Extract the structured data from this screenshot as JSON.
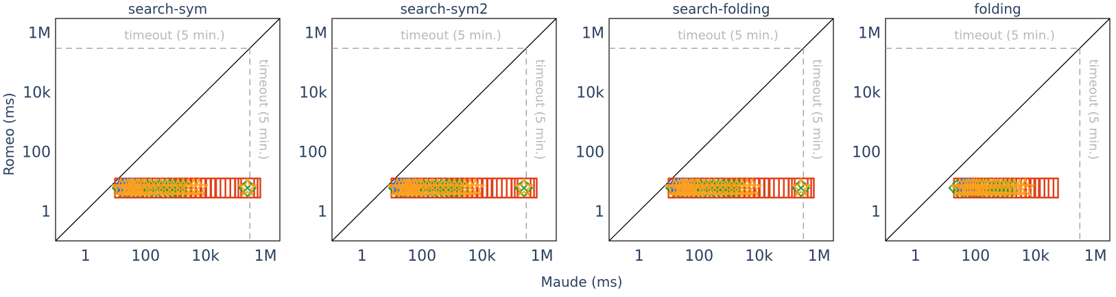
{
  "xlabel": "Maude (ms)",
  "ylabel": "Romeo (ms)",
  "timeout_label": "timeout (5 min.)",
  "timeout_value": 300000,
  "tick_values": [
    1,
    100,
    10000,
    1000000
  ],
  "tick_labels": [
    "1",
    "100",
    "10k",
    "1M"
  ],
  "colors": {
    "red": "#e0401a",
    "green": "#2ca02c",
    "orange": "#ffa01e",
    "blue": "#3a6bd0",
    "timeout_line": "#999999",
    "axis_text": "#2a3f5f",
    "diagonal": "#000000"
  },
  "chart_data": [
    {
      "type": "scatter",
      "title": "search-sym",
      "xscale": "log",
      "yscale": "log",
      "xlim": [
        0.1,
        3000000
      ],
      "ylim": [
        0.1,
        3000000
      ],
      "grid": false,
      "series": [
        {
          "color": "red",
          "marker": "square",
          "x": [
            20,
            28,
            40,
            55,
            80,
            110,
            160,
            230,
            330,
            480,
            700,
            1000,
            1500,
            2200,
            3200,
            4700,
            7000,
            10000,
            15000,
            22000,
            32000,
            47000,
            200000,
            260000,
            320000
          ],
          "y": [
            6,
            6,
            6,
            6,
            6,
            6,
            6,
            6,
            6,
            6,
            6,
            6,
            6,
            6,
            6,
            6,
            6,
            6,
            6,
            6,
            6,
            6,
            6,
            6,
            6
          ]
        },
        {
          "color": "green",
          "marker": "x-diamond",
          "x": [
            15,
            22,
            30,
            40,
            55,
            75,
            110,
            150,
            220,
            300,
            450,
            650,
            900,
            1300,
            2000,
            250000
          ],
          "y": [
            6,
            6,
            6,
            6,
            6,
            6,
            6,
            6,
            6,
            6,
            6,
            6,
            6,
            6,
            6,
            6
          ]
        },
        {
          "color": "blue",
          "marker": "circle",
          "x": [
            20,
            28,
            35
          ],
          "y": [
            7,
            7,
            7
          ]
        },
        {
          "color": "orange",
          "marker": "star",
          "x": [
            15,
            20,
            25,
            30,
            35,
            40,
            50,
            60,
            80,
            100,
            150,
            220,
            330,
            500,
            800,
            1200,
            1800,
            2700,
            4000,
            6000,
            250000
          ],
          "y": [
            6,
            6,
            6,
            6,
            6,
            6,
            6,
            6,
            6,
            6,
            6,
            6,
            6,
            6,
            6,
            6,
            6,
            6,
            6,
            6,
            6
          ]
        }
      ]
    },
    {
      "type": "scatter",
      "title": "search-sym2",
      "xscale": "log",
      "yscale": "log",
      "xlim": [
        0.1,
        3000000
      ],
      "ylim": [
        0.1,
        3000000
      ],
      "grid": false,
      "series": [
        {
          "color": "red",
          "marker": "square",
          "x": [
            20,
            28,
            40,
            55,
            80,
            110,
            160,
            230,
            330,
            480,
            700,
            1000,
            1500,
            2200,
            3200,
            4700,
            7000,
            10000,
            15000,
            22000,
            32000,
            47000,
            200000,
            260000,
            320000
          ],
          "y": [
            6,
            6,
            6,
            6,
            6,
            6,
            6,
            6,
            6,
            6,
            6,
            6,
            6,
            6,
            6,
            6,
            6,
            6,
            6,
            6,
            6,
            6,
            6,
            6,
            6
          ]
        },
        {
          "color": "green",
          "marker": "x-diamond",
          "x": [
            15,
            22,
            30,
            40,
            55,
            75,
            110,
            150,
            220,
            300,
            450,
            650,
            900,
            1300,
            2000,
            250000
          ],
          "y": [
            6,
            6,
            6,
            6,
            6,
            6,
            6,
            6,
            6,
            6,
            6,
            6,
            6,
            6,
            6,
            6
          ]
        },
        {
          "color": "blue",
          "marker": "circle",
          "x": [
            20,
            28,
            35
          ],
          "y": [
            7,
            7,
            7
          ]
        },
        {
          "color": "orange",
          "marker": "star",
          "x": [
            15,
            20,
            25,
            30,
            35,
            40,
            50,
            60,
            80,
            100,
            150,
            220,
            330,
            500,
            800,
            1200,
            1800,
            2700,
            4000,
            6000,
            250000
          ],
          "y": [
            6,
            6,
            6,
            6,
            6,
            6,
            6,
            6,
            6,
            6,
            6,
            6,
            6,
            6,
            6,
            6,
            6,
            6,
            6,
            6,
            6
          ]
        }
      ]
    },
    {
      "type": "scatter",
      "title": "search-folding",
      "xscale": "log",
      "yscale": "log",
      "xlim": [
        0.1,
        3000000
      ],
      "ylim": [
        0.1,
        3000000
      ],
      "grid": false,
      "series": [
        {
          "color": "red",
          "marker": "square",
          "x": [
            20,
            28,
            40,
            55,
            80,
            110,
            160,
            230,
            330,
            480,
            700,
            1000,
            1500,
            2200,
            3200,
            4700,
            7000,
            10000,
            15000,
            22000,
            32000,
            47000,
            200000,
            260000,
            320000
          ],
          "y": [
            6,
            6,
            6,
            6,
            6,
            6,
            6,
            6,
            6,
            6,
            6,
            6,
            6,
            6,
            6,
            6,
            6,
            6,
            6,
            6,
            6,
            6,
            6,
            6,
            6
          ]
        },
        {
          "color": "green",
          "marker": "x-diamond",
          "x": [
            15,
            22,
            30,
            40,
            55,
            75,
            110,
            150,
            220,
            300,
            450,
            650,
            900,
            1300,
            2000,
            250000
          ],
          "y": [
            6,
            6,
            6,
            6,
            6,
            6,
            6,
            6,
            6,
            6,
            6,
            6,
            6,
            6,
            6,
            6
          ]
        },
        {
          "color": "blue",
          "marker": "circle",
          "x": [
            20,
            28,
            35
          ],
          "y": [
            7,
            7,
            7
          ]
        },
        {
          "color": "orange",
          "marker": "star",
          "x": [
            15,
            20,
            25,
            30,
            35,
            40,
            50,
            60,
            80,
            100,
            150,
            220,
            330,
            500,
            800,
            1200,
            1800,
            2700,
            4000,
            6000,
            250000
          ],
          "y": [
            6,
            6,
            6,
            6,
            6,
            6,
            6,
            6,
            6,
            6,
            6,
            6,
            6,
            6,
            6,
            6,
            6,
            6,
            6,
            6,
            6
          ]
        }
      ]
    },
    {
      "type": "scatter",
      "title": "folding",
      "xscale": "log",
      "yscale": "log",
      "xlim": [
        0.1,
        3000000
      ],
      "ylim": [
        0.1,
        3000000
      ],
      "grid": false,
      "series": [
        {
          "color": "red",
          "marker": "square",
          "x": [
            40,
            55,
            75,
            100,
            140,
            200,
            280,
            400,
            560,
            800,
            1100,
            1600,
            2300,
            3300,
            4700,
            6700,
            9500,
            13000,
            19000,
            27000
          ],
          "y": [
            6,
            6,
            6,
            6,
            6,
            6,
            6,
            6,
            6,
            6,
            6,
            6,
            6,
            6,
            6,
            6,
            6,
            6,
            6,
            6
          ]
        },
        {
          "color": "green",
          "marker": "x-diamond",
          "x": [
            25,
            35,
            45,
            60,
            80,
            110,
            150,
            200,
            280,
            400,
            550,
            800,
            1100,
            1600
          ],
          "y": [
            6,
            6,
            6,
            6,
            6,
            6,
            6,
            6,
            6,
            6,
            6,
            6,
            6,
            6
          ]
        },
        {
          "color": "blue",
          "marker": "circle",
          "x": [
            45,
            55
          ],
          "y": [
            7,
            7
          ]
        },
        {
          "color": "orange",
          "marker": "star",
          "x": [
            30,
            40,
            50,
            60,
            75,
            90,
            110,
            140,
            180,
            230,
            300,
            400,
            550,
            750,
            1000,
            1400,
            2000,
            3000,
            4500
          ],
          "y": [
            6,
            6,
            6,
            6,
            6,
            6,
            6,
            6,
            6,
            6,
            6,
            6,
            6,
            6,
            6,
            6,
            6,
            6,
            6
          ]
        }
      ]
    }
  ]
}
